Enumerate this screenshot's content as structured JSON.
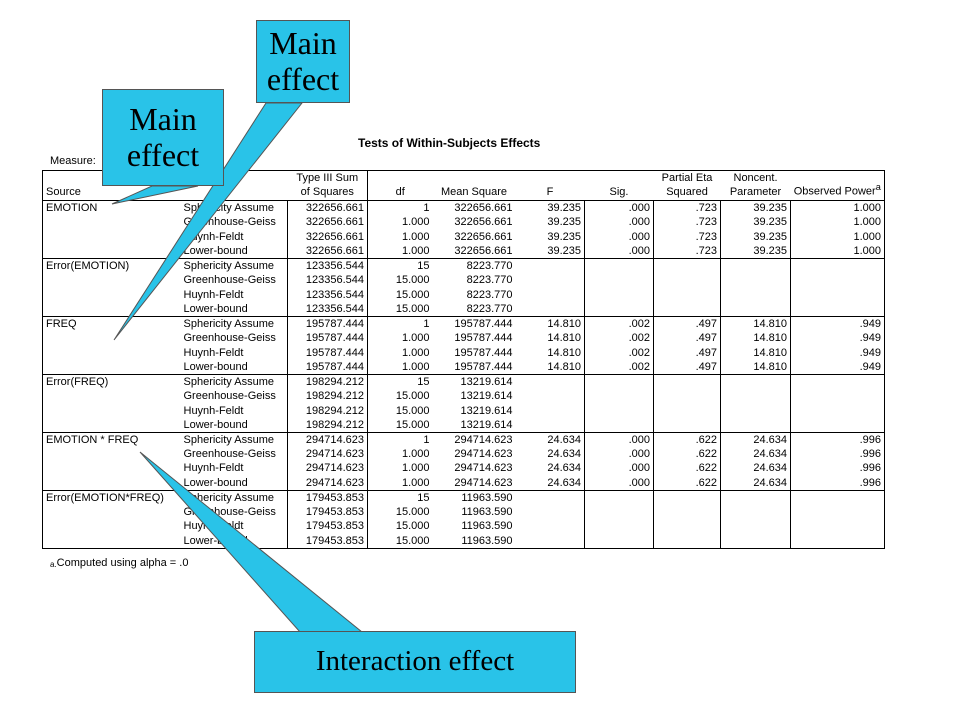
{
  "title": "Tests of Within-Subjects Effects",
  "measure_label": "Measure:",
  "footnote": {
    "marker": "a.",
    "text": "Computed using alpha = .0"
  },
  "headers": {
    "source": "Source",
    "type3_line1": "Type III Sum",
    "type3_line2": "of Squares",
    "df": "df",
    "mean_square": "Mean Square",
    "f": "F",
    "sig": "Sig.",
    "eta_line1": "Partial Eta",
    "eta_line2": "Squared",
    "noncent_line1": "Noncent.",
    "noncent_line2": "Parameter",
    "power": "Observed Power",
    "power_marker": "a"
  },
  "groups": [
    {
      "source": "EMOTION",
      "rows": [
        {
          "method": "Sphericity Assume",
          "ss": "322656.661",
          "df": "1",
          "ms": "322656.661",
          "f": "39.235",
          "sig": ".000",
          "eta": ".723",
          "nc": "39.235",
          "power": "1.000"
        },
        {
          "method": "Greenhouse-Geiss",
          "ss": "322656.661",
          "df": "1.000",
          "ms": "322656.661",
          "f": "39.235",
          "sig": ".000",
          "eta": ".723",
          "nc": "39.235",
          "power": "1.000"
        },
        {
          "method": "Huynh-Feldt",
          "ss": "322656.661",
          "df": "1.000",
          "ms": "322656.661",
          "f": "39.235",
          "sig": ".000",
          "eta": ".723",
          "nc": "39.235",
          "power": "1.000"
        },
        {
          "method": "Lower-bound",
          "ss": "322656.661",
          "df": "1.000",
          "ms": "322656.661",
          "f": "39.235",
          "sig": ".000",
          "eta": ".723",
          "nc": "39.235",
          "power": "1.000"
        }
      ]
    },
    {
      "source": "Error(EMOTION)",
      "rows": [
        {
          "method": "Sphericity Assume",
          "ss": "123356.544",
          "df": "15",
          "ms": "8223.770",
          "f": "",
          "sig": "",
          "eta": "",
          "nc": "",
          "power": ""
        },
        {
          "method": "Greenhouse-Geiss",
          "ss": "123356.544",
          "df": "15.000",
          "ms": "8223.770",
          "f": "",
          "sig": "",
          "eta": "",
          "nc": "",
          "power": ""
        },
        {
          "method": "Huynh-Feldt",
          "ss": "123356.544",
          "df": "15.000",
          "ms": "8223.770",
          "f": "",
          "sig": "",
          "eta": "",
          "nc": "",
          "power": ""
        },
        {
          "method": "Lower-bound",
          "ss": "123356.544",
          "df": "15.000",
          "ms": "8223.770",
          "f": "",
          "sig": "",
          "eta": "",
          "nc": "",
          "power": ""
        }
      ]
    },
    {
      "source": "FREQ",
      "rows": [
        {
          "method": "Sphericity Assume",
          "ss": "195787.444",
          "df": "1",
          "ms": "195787.444",
          "f": "14.810",
          "sig": ".002",
          "eta": ".497",
          "nc": "14.810",
          "power": ".949"
        },
        {
          "method": "Greenhouse-Geiss",
          "ss": "195787.444",
          "df": "1.000",
          "ms": "195787.444",
          "f": "14.810",
          "sig": ".002",
          "eta": ".497",
          "nc": "14.810",
          "power": ".949"
        },
        {
          "method": "Huynh-Feldt",
          "ss": "195787.444",
          "df": "1.000",
          "ms": "195787.444",
          "f": "14.810",
          "sig": ".002",
          "eta": ".497",
          "nc": "14.810",
          "power": ".949"
        },
        {
          "method": "Lower-bound",
          "ss": "195787.444",
          "df": "1.000",
          "ms": "195787.444",
          "f": "14.810",
          "sig": ".002",
          "eta": ".497",
          "nc": "14.810",
          "power": ".949"
        }
      ]
    },
    {
      "source": "Error(FREQ)",
      "rows": [
        {
          "method": "Sphericity Assume",
          "ss": "198294.212",
          "df": "15",
          "ms": "13219.614",
          "f": "",
          "sig": "",
          "eta": "",
          "nc": "",
          "power": ""
        },
        {
          "method": "Greenhouse-Geiss",
          "ss": "198294.212",
          "df": "15.000",
          "ms": "13219.614",
          "f": "",
          "sig": "",
          "eta": "",
          "nc": "",
          "power": ""
        },
        {
          "method": "Huynh-Feldt",
          "ss": "198294.212",
          "df": "15.000",
          "ms": "13219.614",
          "f": "",
          "sig": "",
          "eta": "",
          "nc": "",
          "power": ""
        },
        {
          "method": "Lower-bound",
          "ss": "198294.212",
          "df": "15.000",
          "ms": "13219.614",
          "f": "",
          "sig": "",
          "eta": "",
          "nc": "",
          "power": ""
        }
      ]
    },
    {
      "source": "EMOTION * FREQ",
      "rows": [
        {
          "method": "Sphericity Assume",
          "ss": "294714.623",
          "df": "1",
          "ms": "294714.623",
          "f": "24.634",
          "sig": ".000",
          "eta": ".622",
          "nc": "24.634",
          "power": ".996"
        },
        {
          "method": "Greenhouse-Geiss",
          "ss": "294714.623",
          "df": "1.000",
          "ms": "294714.623",
          "f": "24.634",
          "sig": ".000",
          "eta": ".622",
          "nc": "24.634",
          "power": ".996"
        },
        {
          "method": "Huynh-Feldt",
          "ss": "294714.623",
          "df": "1.000",
          "ms": "294714.623",
          "f": "24.634",
          "sig": ".000",
          "eta": ".622",
          "nc": "24.634",
          "power": ".996"
        },
        {
          "method": "Lower-bound",
          "ss": "294714.623",
          "df": "1.000",
          "ms": "294714.623",
          "f": "24.634",
          "sig": ".000",
          "eta": ".622",
          "nc": "24.634",
          "power": ".996"
        }
      ]
    },
    {
      "source": "Error(EMOTION*FREQ)",
      "rows": [
        {
          "method": "Sphericity Assume",
          "ss": "179453.853",
          "df": "15",
          "ms": "11963.590",
          "f": "",
          "sig": "",
          "eta": "",
          "nc": "",
          "power": ""
        },
        {
          "method": "Greenhouse-Geiss",
          "ss": "179453.853",
          "df": "15.000",
          "ms": "11963.590",
          "f": "",
          "sig": "",
          "eta": "",
          "nc": "",
          "power": ""
        },
        {
          "method": "Huynh-Feldt",
          "ss": "179453.853",
          "df": "15.000",
          "ms": "11963.590",
          "f": "",
          "sig": "",
          "eta": "",
          "nc": "",
          "power": ""
        },
        {
          "method": "Lower-bound",
          "ss": "179453.853",
          "df": "15.000",
          "ms": "11963.590",
          "f": "",
          "sig": "",
          "eta": "",
          "nc": "",
          "power": ""
        }
      ]
    }
  ],
  "callouts": {
    "main_effect_top": "Main effect",
    "main_effect_left": "Main effect",
    "interaction": "Interaction effect"
  },
  "colors": {
    "callout_fill": "#29c3e8"
  }
}
